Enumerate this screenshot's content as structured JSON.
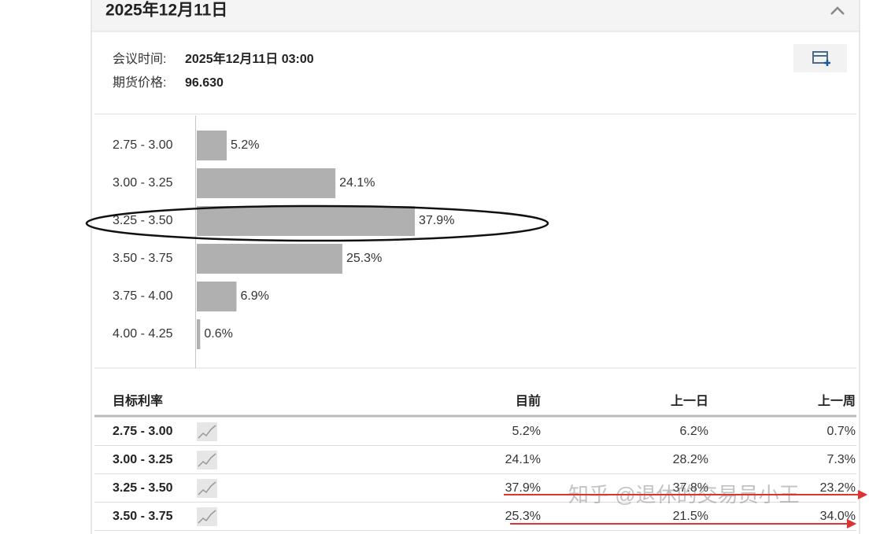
{
  "header": {
    "title": "2025年12月11日"
  },
  "meeting": {
    "time_label": "会议时间:",
    "time": "2025年12月11日 03:00",
    "price_label": "期货价格:",
    "price": "96.630"
  },
  "chart": {
    "type": "bar",
    "orientation": "horizontal",
    "color": "#b0b0b0",
    "categories": [
      "2.75 - 3.00",
      "3.00 - 3.25",
      "3.25 - 3.50",
      "3.50 - 3.75",
      "3.75 - 4.00",
      "4.00 - 4.25"
    ],
    "values": [
      5.2,
      24.1,
      37.9,
      25.3,
      6.9,
      0.6
    ],
    "value_labels": [
      "5.2%",
      "24.1%",
      "37.9%",
      "25.3%",
      "6.9%",
      "0.6%"
    ]
  },
  "table": {
    "headers": [
      "目标利率",
      "目前",
      "上一日",
      "上一周"
    ],
    "rows": [
      [
        "2.75 - 3.00",
        "5.2%",
        "6.2%",
        "0.7%"
      ],
      [
        "3.00 - 3.25",
        "24.1%",
        "28.2%",
        "7.3%"
      ],
      [
        "3.25 - 3.50",
        "37.9%",
        "37.8%",
        "23.2%"
      ],
      [
        "3.50 - 3.75",
        "25.3%",
        "21.5%",
        "34.0%"
      ]
    ]
  },
  "watermark": "知乎 @退休的交易员小王"
}
